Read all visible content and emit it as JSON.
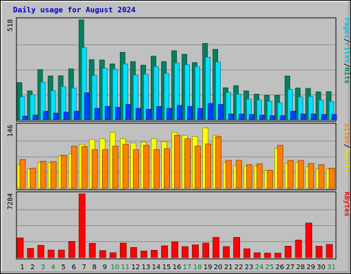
{
  "chart_data": {
    "type": "bar",
    "title": "Daily usage for August 2024",
    "categories": [
      "1",
      "2",
      "3",
      "4",
      "5",
      "6",
      "7",
      "8",
      "9",
      "10",
      "11",
      "12",
      "13",
      "14",
      "15",
      "16",
      "17",
      "18",
      "19",
      "20",
      "21",
      "22",
      "23",
      "24",
      "25",
      "26",
      "27",
      "28",
      "29",
      "30",
      "31"
    ],
    "weekend_days": [
      "3",
      "4",
      "10",
      "11",
      "17",
      "18",
      "24",
      "25",
      "31"
    ],
    "colors": {
      "title": "#0000cc",
      "weekday_label": "#000000",
      "weekend_label": "#008040",
      "plot_bg": "#c0c0c0",
      "frame_bg": "#c0c0c0",
      "gridline": "#8c8c8c",
      "hits": "#008060",
      "files": "#00e0ff",
      "pages": "#0040ff",
      "visits": "#ffff00",
      "sites": "#ff8000",
      "kbytes": "#ff0000"
    },
    "panels": [
      {
        "id": "hits_files_pages",
        "ymax_label": "518",
        "ylim": [
          0,
          518
        ],
        "legend": [
          {
            "text": "Hits",
            "color": "#008060"
          },
          {
            "text": "/",
            "color": "#000000"
          },
          {
            "text": "Files",
            "color": "#00c0e0"
          },
          {
            "text": "/",
            "color": "#000000"
          },
          {
            "text": "Pages",
            "color": "#00c0e0"
          }
        ],
        "series": [
          {
            "name": "Hits",
            "values": [
              193,
              150,
              260,
              227,
              228,
              264,
              518,
              312,
              310,
              290,
              350,
              302,
              283,
              330,
              302,
              358,
              340,
              297,
              396,
              365,
              166,
              177,
              150,
              133,
              127,
              127,
              227,
              165,
              163,
              145,
              146
            ],
            "color": "#008060",
            "offset": 0
          },
          {
            "name": "Files",
            "values": [
              120,
              130,
              195,
              150,
              172,
              165,
              374,
              230,
              268,
              262,
              290,
              232,
              237,
              276,
              241,
              294,
              286,
              276,
              325,
              300,
              142,
              133,
              108,
              103,
              96,
              89,
              158,
              118,
              121,
              103,
              95
            ],
            "color": "#00e0ff",
            "offset": 1
          },
          {
            "name": "Pages",
            "values": [
              20,
              25,
              45,
              35,
              40,
              45,
              140,
              60,
              70,
              65,
              80,
              60,
              55,
              70,
              60,
              75,
              70,
              60,
              85,
              80,
              30,
              30,
              28,
              25,
              22,
              22,
              45,
              30,
              30,
              28,
              28
            ],
            "color": "#0040ff",
            "offset": 2
          }
        ]
      },
      {
        "id": "visits_sites",
        "ymax_label": "146",
        "ylim": [
          0,
          146
        ],
        "legend": [
          {
            "text": "Visits",
            "color": "#e0e000"
          },
          {
            "text": "/",
            "color": "#000000"
          },
          {
            "text": "Sites",
            "color": "#ff8000"
          }
        ],
        "series": [
          {
            "name": "Visits",
            "values": [
              55,
              45,
              60,
              60,
              75,
              80,
              102,
              113,
              115,
              130,
              115,
              105,
              107,
              115,
              108,
              130,
              123,
              120,
              140,
              123,
              60,
              52,
              52,
              52,
              42,
              93,
              58,
              60,
              50,
              45,
              45
            ],
            "color": "#ffff00",
            "offset": 0
          },
          {
            "name": "Sites",
            "values": [
              67,
              47,
              63,
              62,
              77,
              98,
              97,
              90,
              90,
              98,
              102,
              90,
              100,
              90,
              92,
              123,
              115,
              98,
              103,
              120,
              65,
              65,
              55,
              57,
              42,
              100,
              65,
              65,
              58,
              55,
              47
            ],
            "color": "#ff8000",
            "offset": 1
          }
        ]
      },
      {
        "id": "kbytes",
        "ymax_label": "7284",
        "ylim": [
          0,
          7284
        ],
        "legend": [
          {
            "text": "KBytes",
            "color": "#ff0000"
          }
        ],
        "series": [
          {
            "name": "KBytes",
            "values": [
              2250,
              1050,
              1400,
              850,
              850,
              1850,
              7284,
              1620,
              800,
              550,
              1650,
              1150,
              750,
              830,
              1340,
              1800,
              1250,
              1450,
              1650,
              2300,
              1250,
              2300,
              1000,
              550,
              510,
              500,
              1300,
              2000,
              3950,
              1300,
              1500
            ],
            "color": "#ff0000",
            "offset": 0
          }
        ]
      }
    ]
  }
}
